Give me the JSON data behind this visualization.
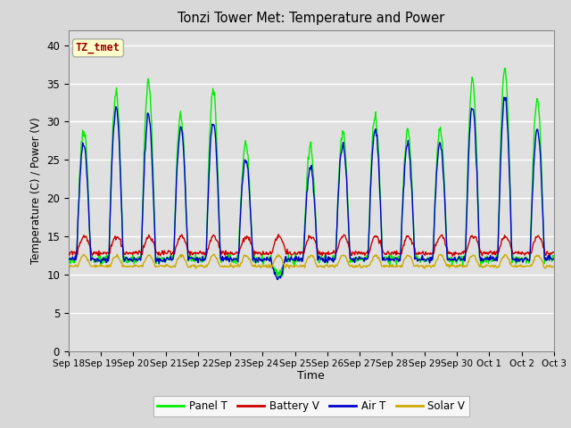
{
  "title": "Tonzi Tower Met: Temperature and Power",
  "xlabel": "Time",
  "ylabel": "Temperature (C) / Power (V)",
  "annotation": "TZ_tmet",
  "ylim": [
    0,
    42
  ],
  "yticks": [
    0,
    5,
    10,
    15,
    20,
    25,
    30,
    35,
    40
  ],
  "x_labels": [
    "Sep 18",
    "Sep 19",
    "Sep 20",
    "Sep 21",
    "Sep 22",
    "Sep 23",
    "Sep 24",
    "Sep 25",
    "Sep 26",
    "Sep 27",
    "Sep 28",
    "Sep 29",
    "Sep 30",
    "Oct 1",
    "Oct 2",
    "Oct 3"
  ],
  "colors": {
    "panel_t": "#00ee00",
    "battery_v": "#cc0000",
    "air_t": "#0000cc",
    "solar_v": "#ccaa00"
  },
  "legend": [
    "Panel T",
    "Battery V",
    "Air T",
    "Solar V"
  ],
  "fig_bg": "#d8d8d8",
  "axes_bg": "#e0e0e0"
}
